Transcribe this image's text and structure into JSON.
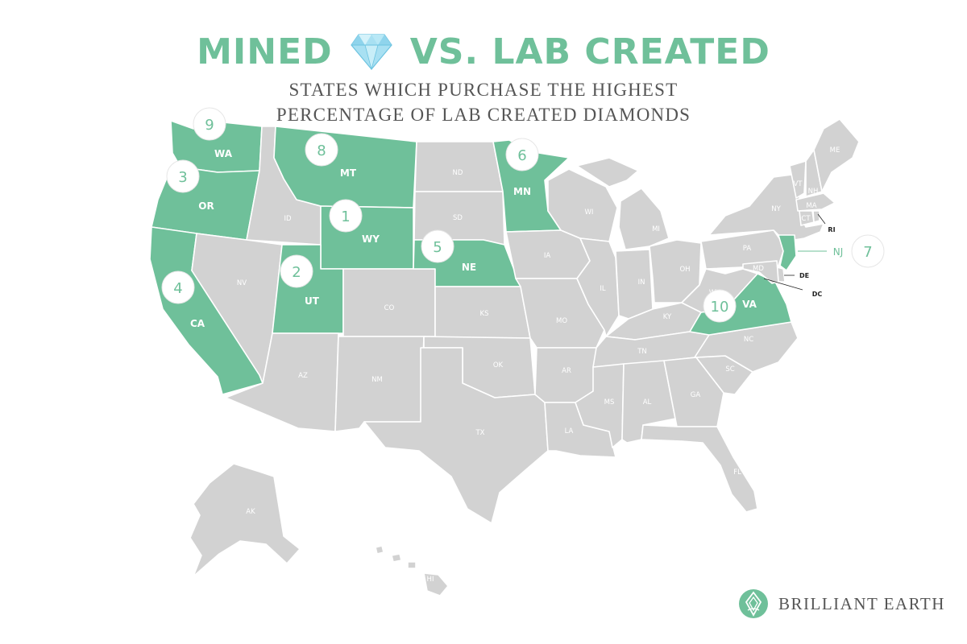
{
  "header": {
    "title_left": "MINED",
    "title_right": "VS. LAB CREATED",
    "subtitle_line1": "STATES WHICH PURCHASE THE HIGHEST",
    "subtitle_line2": "PERCENTAGE OF LAB CREATED DIAMONDS",
    "icon": "diamond-icon"
  },
  "colors": {
    "accent": "#6fc09a",
    "state_default": "#d2d2d2",
    "text_gray": "#555555"
  },
  "map": {
    "highlighted_states": [
      "WA",
      "OR",
      "CA",
      "MT",
      "WY",
      "UT",
      "NE",
      "MN",
      "NJ",
      "VA"
    ],
    "rankings": [
      {
        "rank": "1",
        "state": "WY"
      },
      {
        "rank": "2",
        "state": "UT"
      },
      {
        "rank": "3",
        "state": "OR"
      },
      {
        "rank": "4",
        "state": "CA"
      },
      {
        "rank": "5",
        "state": "NE"
      },
      {
        "rank": "6",
        "state": "MN"
      },
      {
        "rank": "7",
        "state": "NJ"
      },
      {
        "rank": "8",
        "state": "MT"
      },
      {
        "rank": "9",
        "state": "WA"
      },
      {
        "rank": "10",
        "state": "VA"
      }
    ],
    "state_labels": {
      "WA": "WA",
      "OR": "OR",
      "CA": "CA",
      "ID": "ID",
      "NV": "NV",
      "MT": "MT",
      "WY": "WY",
      "UT": "UT",
      "AZ": "AZ",
      "CO": "CO",
      "NM": "NM",
      "ND": "ND",
      "SD": "SD",
      "NE": "NE",
      "KS": "KS",
      "OK": "OK",
      "TX": "TX",
      "MN": "MN",
      "IA": "IA",
      "MO": "MO",
      "AR": "AR",
      "LA": "LA",
      "WI": "WI",
      "IL": "IL",
      "MI": "MI",
      "IN": "IN",
      "OH": "OH",
      "KY": "KY",
      "TN": "TN",
      "MS": "MS",
      "AL": "AL",
      "GA": "GA",
      "FL": "FL",
      "SC": "SC",
      "NC": "NC",
      "VA": "VA",
      "WV": "WV",
      "PA": "PA",
      "NY": "NY",
      "VT": "VT",
      "NH": "NH",
      "ME": "ME",
      "MA": "MA",
      "CT": "CT",
      "RI": "RI",
      "NJ": "NJ",
      "DE": "DE",
      "MD": "MD",
      "DC": "DC",
      "AK": "AK",
      "HI": "HI"
    }
  },
  "brand": {
    "name": "BRILLIANT EARTH",
    "icon": "brilliant-earth-logo-icon"
  }
}
